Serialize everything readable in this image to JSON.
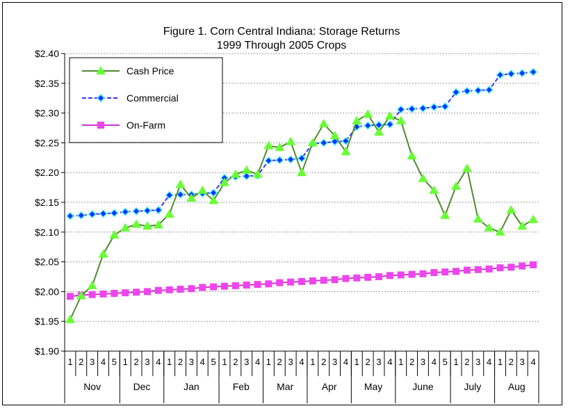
{
  "chart_data": {
    "type": "line",
    "title": "Figure 1. Corn Central Indiana: Storage Returns",
    "subtitle": "1999 Through 2005 Crops",
    "xlabel": "",
    "ylabel": "",
    "ylim": [
      1.9,
      2.4
    ],
    "yticks": [
      "$1.90",
      "$1.95",
      "$2.00",
      "$2.05",
      "$2.10",
      "$2.15",
      "$2.20",
      "$2.25",
      "$2.30",
      "$2.35",
      "$2.40"
    ],
    "grid": true,
    "legend": "top-left",
    "months": [
      {
        "name": "Nov",
        "weeks": [
          "1",
          "2",
          "3",
          "4",
          "5"
        ]
      },
      {
        "name": "Dec",
        "weeks": [
          "1",
          "2",
          "3",
          "4"
        ]
      },
      {
        "name": "Jan",
        "weeks": [
          "1",
          "2",
          "3",
          "4",
          "5"
        ]
      },
      {
        "name": "Feb",
        "weeks": [
          "1",
          "2",
          "3",
          "4"
        ]
      },
      {
        "name": "Mar",
        "weeks": [
          "1",
          "2",
          "3",
          "4"
        ]
      },
      {
        "name": "Apr",
        "weeks": [
          "1",
          "2",
          "3",
          "4"
        ]
      },
      {
        "name": "May",
        "weeks": [
          "1",
          "2",
          "3",
          "4"
        ]
      },
      {
        "name": "June",
        "weeks": [
          "1",
          "2",
          "3",
          "4",
          "5"
        ]
      },
      {
        "name": "July",
        "weeks": [
          "1",
          "2",
          "3",
          "4"
        ]
      },
      {
        "name": "Aug",
        "weeks": [
          "1",
          "2",
          "3",
          "4"
        ]
      }
    ],
    "series": [
      {
        "name": "Cash Price",
        "color": "#66FF33",
        "line": "#4F8A2F",
        "marker": "triangle",
        "values": [
          1.953,
          1.993,
          2.01,
          2.063,
          2.095,
          2.107,
          2.113,
          2.11,
          2.112,
          2.13,
          2.18,
          2.157,
          2.17,
          2.153,
          2.183,
          2.197,
          2.204,
          2.197,
          2.245,
          2.242,
          2.252,
          2.2,
          2.25,
          2.282,
          2.262,
          2.235,
          2.287,
          2.298,
          2.268,
          2.295,
          2.287,
          2.228,
          2.19,
          2.17,
          2.128,
          2.177,
          2.207,
          2.122,
          2.107,
          2.1,
          2.137,
          2.11,
          2.121
        ]
      },
      {
        "name": "Commercial",
        "color": "#0033FF",
        "line": "#3333FF",
        "marker": "diamond",
        "values": [
          2.127,
          2.128,
          2.13,
          2.131,
          2.132,
          2.134,
          2.135,
          2.136,
          2.137,
          2.162,
          2.163,
          2.163,
          2.165,
          2.166,
          2.191,
          2.193,
          2.194,
          2.195,
          2.22,
          2.221,
          2.222,
          2.224,
          2.249,
          2.25,
          2.252,
          2.253,
          2.277,
          2.279,
          2.28,
          2.281,
          2.306,
          2.307,
          2.308,
          2.31,
          2.311,
          2.335,
          2.337,
          2.338,
          2.339,
          2.364,
          2.366,
          2.367,
          2.369
        ]
      },
      {
        "name": "On-Farm",
        "color": "#EE44EE",
        "line": "#CC33CC",
        "marker": "square",
        "values": [
          1.992,
          1.994,
          1.995,
          1.996,
          1.997,
          1.998,
          1.999,
          2.0,
          2.002,
          2.003,
          2.004,
          2.005,
          2.007,
          2.008,
          2.009,
          2.01,
          2.011,
          2.012,
          2.013,
          2.015,
          2.016,
          2.017,
          2.018,
          2.019,
          2.02,
          2.022,
          2.023,
          2.024,
          2.025,
          2.027,
          2.028,
          2.029,
          2.03,
          2.032,
          2.033,
          2.034,
          2.036,
          2.037,
          2.038,
          2.04,
          2.041,
          2.043,
          2.045
        ]
      }
    ]
  }
}
